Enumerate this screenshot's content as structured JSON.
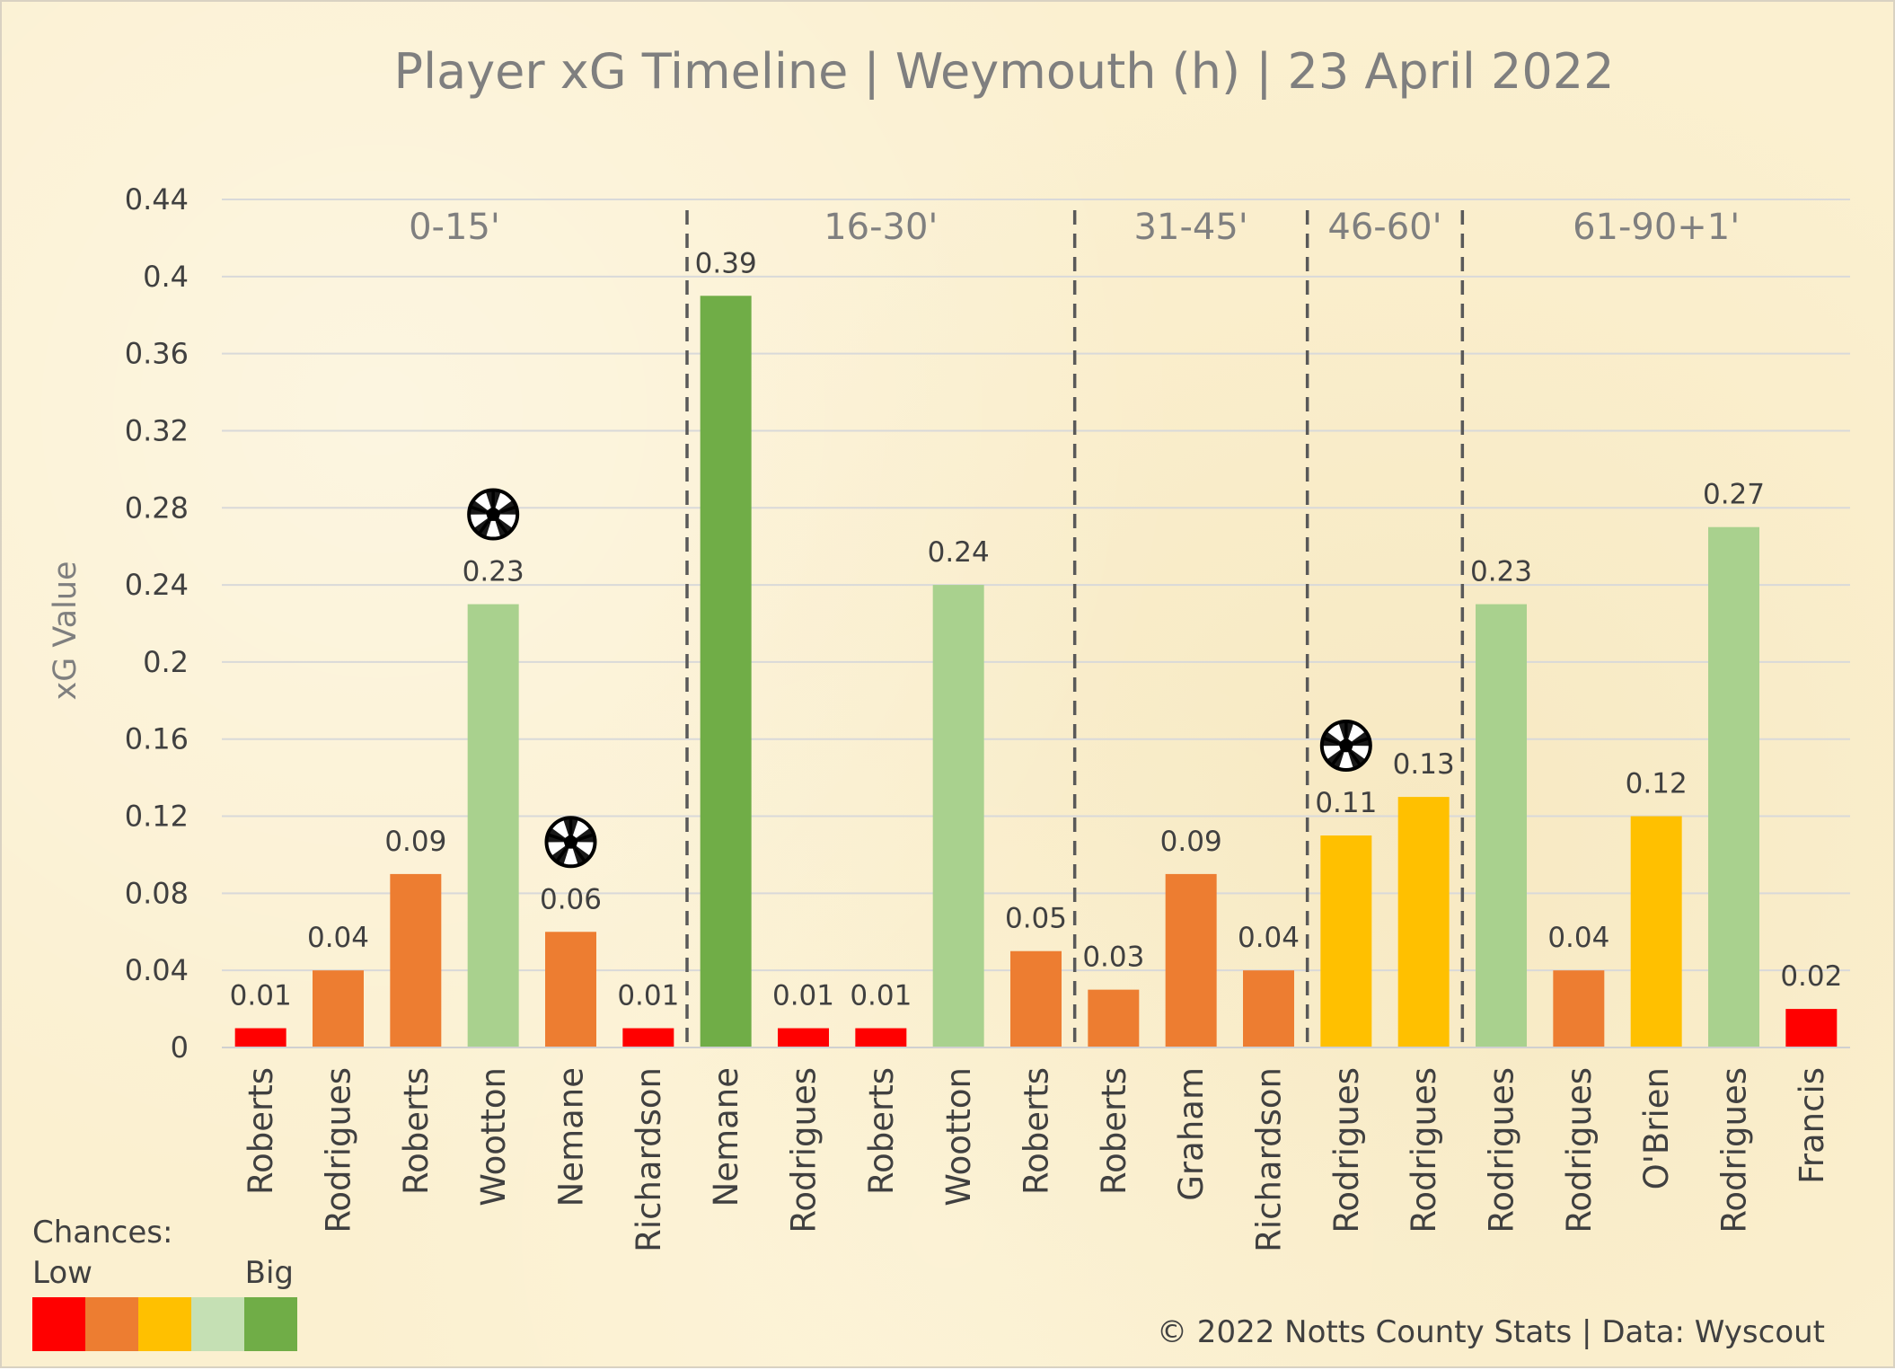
{
  "title": "Player xG Timeline | Weymouth (h) | 23 April 2022",
  "chart_data": {
    "type": "bar",
    "title": "Player xG Timeline | Weymouth (h) | 23 April 2022",
    "ylabel": "xG Value",
    "xlabel": "",
    "ylim": [
      0,
      0.44
    ],
    "yticks": [
      "0",
      "0.04",
      "0.08",
      "0.12",
      "0.16",
      "0.2",
      "0.24",
      "0.28",
      "0.32",
      "0.36",
      "0.4",
      "0.44"
    ],
    "grid": "horizontal",
    "categories": [
      "Roberts",
      "Rodrigues",
      "Roberts",
      "Wootton",
      "Nemane",
      "Richardson",
      "Nemane",
      "Rodrigues",
      "Roberts",
      "Wootton",
      "Roberts",
      "Roberts",
      "Graham",
      "Richardson",
      "Rodrigues",
      "Rodrigues",
      "Rodrigues",
      "Rodrigues",
      "O'Brien",
      "Rodrigues",
      "Francis"
    ],
    "values": [
      0.01,
      0.04,
      0.09,
      0.23,
      0.06,
      0.01,
      0.39,
      0.01,
      0.01,
      0.24,
      0.05,
      0.03,
      0.09,
      0.04,
      0.11,
      0.13,
      0.23,
      0.04,
      0.12,
      0.27,
      0.02
    ],
    "value_labels": [
      "0.01",
      "0.04",
      "0.09",
      "0.23",
      "0.06",
      "0.01",
      "0.39",
      "0.01",
      "0.01",
      "0.24",
      "0.05",
      "0.03",
      "0.09",
      "0.04",
      "0.11",
      "0.13",
      "0.23",
      "0.04",
      "0.12",
      "0.27",
      "0.02"
    ],
    "chance_level": [
      0,
      1,
      1,
      3,
      1,
      0,
      4,
      0,
      0,
      3,
      1,
      1,
      1,
      1,
      2,
      2,
      3,
      1,
      2,
      3,
      0
    ],
    "goals": [
      3,
      4,
      14
    ],
    "segments": [
      {
        "label": "0-15'",
        "start": 0,
        "end": 5
      },
      {
        "label": "16-30'",
        "start": 6,
        "end": 10
      },
      {
        "label": "31-45'",
        "start": 11,
        "end": 13
      },
      {
        "label": "46-60'",
        "start": 14,
        "end": 15
      },
      {
        "label": "61-90+1'",
        "start": 16,
        "end": 20
      }
    ]
  },
  "legend": {
    "title": "Chances:",
    "low_label": "Low",
    "big_label": "Big",
    "colors": [
      "#ff0000",
      "#ed7d31",
      "#ffc000",
      "#c5e0b4",
      "#70ad47"
    ]
  },
  "bar_colors": [
    "#ff0000",
    "#ed7d31",
    "#ffc000",
    "#a9d18e",
    "#70ad47"
  ],
  "goal_icon": "football-icon",
  "footer": "© 2022 Notts County Stats | Data: Wyscout"
}
